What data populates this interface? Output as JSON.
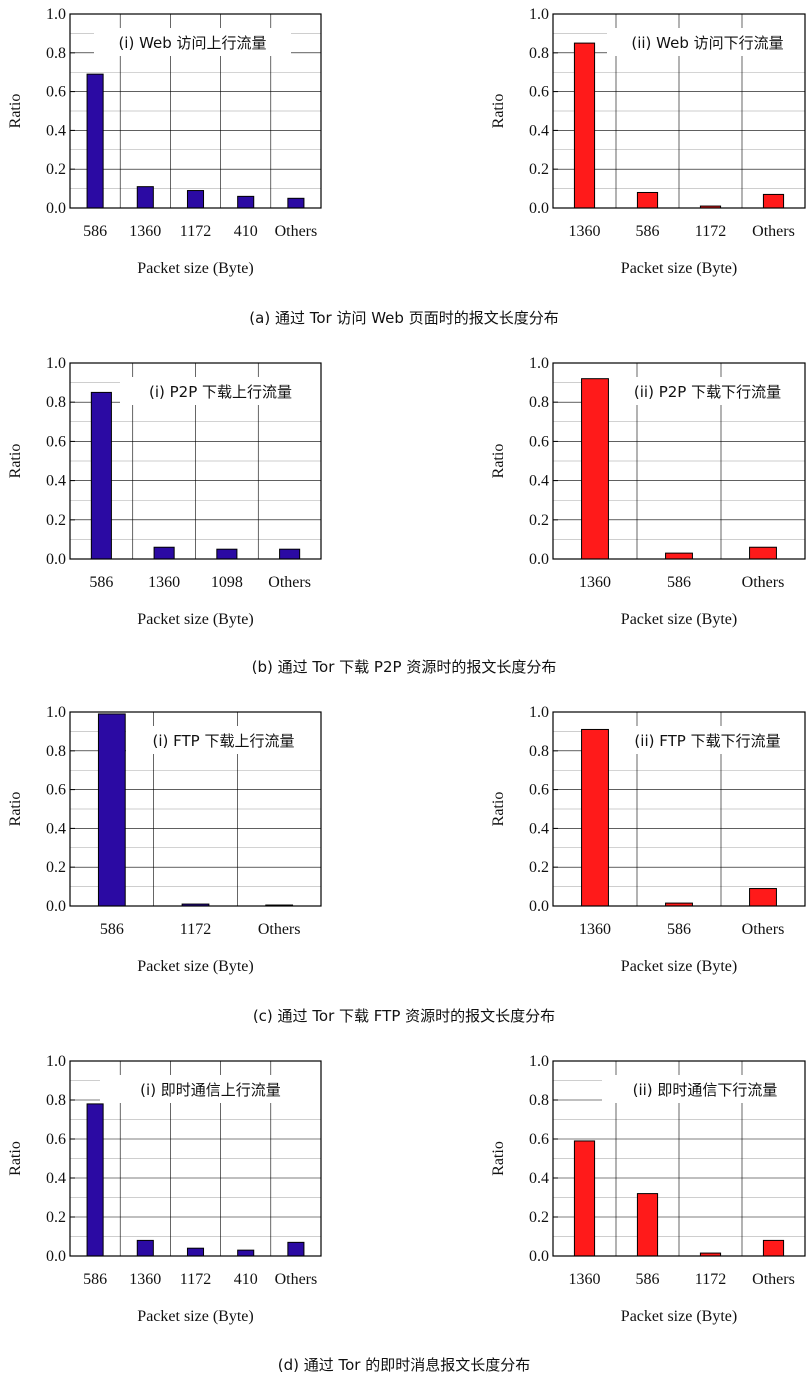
{
  "chart_data": [
    {
      "type": "bar",
      "panel": "a-i",
      "inset_label": "(i) Web 访问上行流量",
      "categories": [
        "586",
        "1360",
        "1172",
        "410",
        "Others"
      ],
      "values": [
        0.69,
        0.11,
        0.09,
        0.06,
        0.05
      ],
      "xlabel": "Packet size (Byte)",
      "ylabel": "Ratio",
      "ylim": [
        0,
        1.0
      ],
      "yticks": [
        "0.0",
        "0.2",
        "0.4",
        "0.6",
        "0.8",
        "1.0"
      ],
      "grid": true,
      "color": "#2b0aa3"
    },
    {
      "type": "bar",
      "panel": "a-ii",
      "inset_label": "(ii) Web 访问下行流量",
      "categories": [
        "1360",
        "586",
        "1172",
        "Others"
      ],
      "values": [
        0.85,
        0.08,
        0.01,
        0.07
      ],
      "xlabel": "Packet size (Byte)",
      "ylabel": "Ratio",
      "ylim": [
        0,
        1.0
      ],
      "yticks": [
        "0.0",
        "0.2",
        "0.4",
        "0.6",
        "0.8",
        "1.0"
      ],
      "grid": true,
      "color": "#ff1a1a"
    },
    {
      "type": "bar",
      "panel": "b-i",
      "inset_label": "(i) P2P 下载上行流量",
      "categories": [
        "586",
        "1360",
        "1098",
        "Others"
      ],
      "values": [
        0.85,
        0.06,
        0.05,
        0.05
      ],
      "xlabel": "Packet size (Byte)",
      "ylabel": "Ratio",
      "ylim": [
        0,
        1.0
      ],
      "yticks": [
        "0.0",
        "0.2",
        "0.4",
        "0.6",
        "0.8",
        "1.0"
      ],
      "grid": true,
      "color": "#2b0aa3"
    },
    {
      "type": "bar",
      "panel": "b-ii",
      "inset_label": "(ii) P2P 下载下行流量",
      "categories": [
        "1360",
        "586",
        "Others"
      ],
      "values": [
        0.92,
        0.03,
        0.06
      ],
      "xlabel": "Packet size (Byte)",
      "ylabel": "Ratio",
      "ylim": [
        0,
        1.0
      ],
      "yticks": [
        "0.0",
        "0.2",
        "0.4",
        "0.6",
        "0.8",
        "1.0"
      ],
      "grid": true,
      "color": "#ff1a1a"
    },
    {
      "type": "bar",
      "panel": "c-i",
      "inset_label": "(i) FTP 下载上行流量",
      "categories": [
        "586",
        "1172",
        "Others"
      ],
      "values": [
        0.99,
        0.01,
        0.005
      ],
      "xlabel": "Packet size (Byte)",
      "ylabel": "Ratio",
      "ylim": [
        0,
        1.0
      ],
      "yticks": [
        "0.0",
        "0.2",
        "0.4",
        "0.6",
        "0.8",
        "1.0"
      ],
      "grid": true,
      "color": "#2b0aa3"
    },
    {
      "type": "bar",
      "panel": "c-ii",
      "inset_label": "(ii) FTP 下载下行流量",
      "categories": [
        "1360",
        "586",
        "Others"
      ],
      "values": [
        0.91,
        0.015,
        0.09
      ],
      "xlabel": "Packet size (Byte)",
      "ylabel": "Ratio",
      "ylim": [
        0,
        1.0
      ],
      "yticks": [
        "0.0",
        "0.2",
        "0.4",
        "0.6",
        "0.8",
        "1.0"
      ],
      "grid": true,
      "color": "#ff1a1a"
    },
    {
      "type": "bar",
      "panel": "d-i",
      "inset_label": "(i) 即时通信上行流量",
      "categories": [
        "586",
        "1360",
        "1172",
        "410",
        "Others"
      ],
      "values": [
        0.78,
        0.08,
        0.04,
        0.03,
        0.07
      ],
      "xlabel": "Packet size (Byte)",
      "ylabel": "Ratio",
      "ylim": [
        0,
        1.0
      ],
      "yticks": [
        "0.0",
        "0.2",
        "0.4",
        "0.6",
        "0.8",
        "1.0"
      ],
      "grid": true,
      "color": "#2b0aa3"
    },
    {
      "type": "bar",
      "panel": "d-ii",
      "inset_label": "(ii) 即时通信下行流量",
      "categories": [
        "1360",
        "586",
        "1172",
        "Others"
      ],
      "values": [
        0.59,
        0.32,
        0.015,
        0.08
      ],
      "xlabel": "Packet size (Byte)",
      "ylabel": "Ratio",
      "ylim": [
        0,
        1.0
      ],
      "yticks": [
        "0.0",
        "0.2",
        "0.4",
        "0.6",
        "0.8",
        "1.0"
      ],
      "grid": true,
      "color": "#ff1a1a"
    }
  ],
  "captions": [
    "(a)  通过 Tor 访问 Web 页面时的报文长度分布",
    "(b)  通过 Tor 下载 P2P 资源时的报文长度分布",
    "(c)  通过 Tor 下载 FTP 资源时的报文长度分布",
    "(d)  通过 Tor 的即时消息报文长度分布"
  ]
}
